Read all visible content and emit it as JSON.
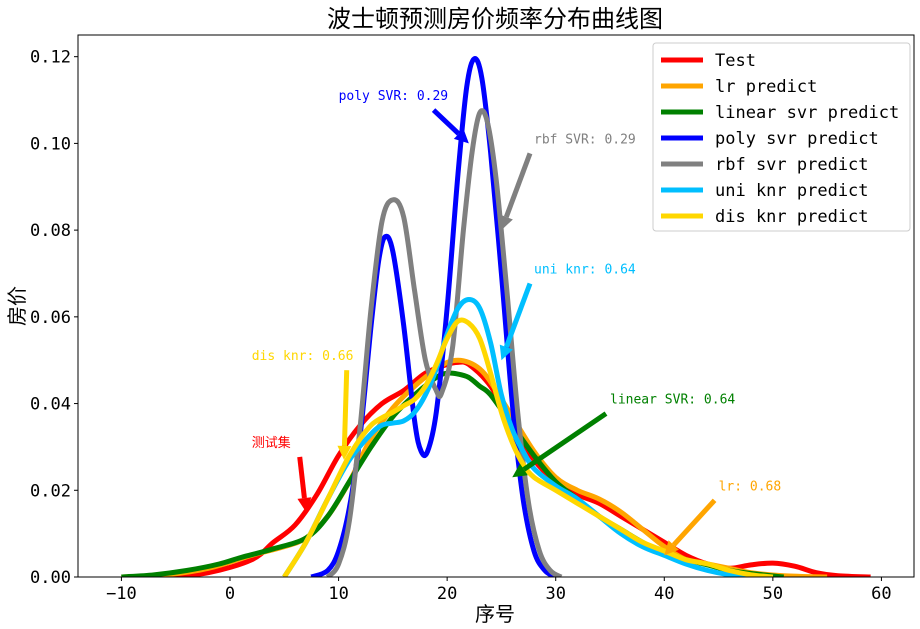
{
  "chart_data": {
    "type": "line",
    "title": "波士顿预测房价频率分布曲线图",
    "xlabel": "序号",
    "ylabel": "房价",
    "xlim": [
      -14,
      63
    ],
    "ylim": [
      0,
      0.125
    ],
    "xticks": [
      -10,
      0,
      10,
      20,
      30,
      40,
      50,
      60
    ],
    "yticks": [
      0.0,
      0.02,
      0.04,
      0.06,
      0.08,
      0.1,
      0.12
    ],
    "xtick_labels": [
      "−10",
      "0",
      "10",
      "20",
      "30",
      "40",
      "50",
      "60"
    ],
    "ytick_labels": [
      "0.00",
      "0.02",
      "0.04",
      "0.06",
      "0.08",
      "0.10",
      "0.12"
    ],
    "grid": false,
    "legend_position": "top-right",
    "series": [
      {
        "name": "Test",
        "color": "#ff0000",
        "points": [
          [
            -6,
            0
          ],
          [
            -2,
            0.001
          ],
          [
            2,
            0.004
          ],
          [
            4,
            0.008
          ],
          [
            6,
            0.012
          ],
          [
            8,
            0.019
          ],
          [
            10,
            0.028
          ],
          [
            12,
            0.035
          ],
          [
            14,
            0.04
          ],
          [
            16,
            0.043
          ],
          [
            18,
            0.047
          ],
          [
            20,
            0.049
          ],
          [
            21,
            0.0495
          ],
          [
            22,
            0.049
          ],
          [
            24,
            0.044
          ],
          [
            26,
            0.035
          ],
          [
            28,
            0.027
          ],
          [
            30,
            0.022
          ],
          [
            32,
            0.019
          ],
          [
            34,
            0.017
          ],
          [
            36,
            0.014
          ],
          [
            38,
            0.011
          ],
          [
            40,
            0.008
          ],
          [
            42,
            0.005
          ],
          [
            44,
            0.003
          ],
          [
            46,
            0.002
          ],
          [
            48,
            0.0028
          ],
          [
            50,
            0.0032
          ],
          [
            52,
            0.0025
          ],
          [
            54,
            0.001
          ],
          [
            56,
            0.0003
          ],
          [
            59,
            0
          ]
        ]
      },
      {
        "name": "lr predict",
        "color": "#ffa500",
        "points": [
          [
            -10,
            0
          ],
          [
            -6,
            0.0005
          ],
          [
            -2,
            0.002
          ],
          [
            2,
            0.005
          ],
          [
            5,
            0.007
          ],
          [
            7,
            0.009
          ],
          [
            9,
            0.014
          ],
          [
            11,
            0.022
          ],
          [
            13,
            0.032
          ],
          [
            15,
            0.039
          ],
          [
            17,
            0.044
          ],
          [
            19,
            0.048
          ],
          [
            20,
            0.0495
          ],
          [
            21,
            0.05
          ],
          [
            22,
            0.0495
          ],
          [
            23,
            0.048
          ],
          [
            24,
            0.045
          ],
          [
            26,
            0.037
          ],
          [
            28,
            0.029
          ],
          [
            30,
            0.023
          ],
          [
            32,
            0.02
          ],
          [
            34,
            0.018
          ],
          [
            36,
            0.015
          ],
          [
            38,
            0.011
          ],
          [
            40,
            0.007
          ],
          [
            42,
            0.004
          ],
          [
            44,
            0.003
          ],
          [
            46,
            0.002
          ],
          [
            48,
            0.001
          ],
          [
            51,
            0.0003
          ],
          [
            55,
            0
          ]
        ]
      },
      {
        "name": "linear svr predict",
        "color": "#008000",
        "points": [
          [
            -10,
            0
          ],
          [
            -7,
            0.0005
          ],
          [
            -4,
            0.0015
          ],
          [
            -1,
            0.003
          ],
          [
            1,
            0.0045
          ],
          [
            4,
            0.0065
          ],
          [
            7,
            0.009
          ],
          [
            9,
            0.014
          ],
          [
            11,
            0.022
          ],
          [
            13,
            0.03
          ],
          [
            15,
            0.037
          ],
          [
            17,
            0.042
          ],
          [
            19,
            0.046
          ],
          [
            20,
            0.047
          ],
          [
            21,
            0.0468
          ],
          [
            22,
            0.046
          ],
          [
            23,
            0.044
          ],
          [
            24,
            0.042
          ],
          [
            26,
            0.035
          ],
          [
            28,
            0.028
          ],
          [
            30,
            0.022
          ],
          [
            32,
            0.018
          ],
          [
            34,
            0.014
          ],
          [
            36,
            0.011
          ],
          [
            38,
            0.008
          ],
          [
            40,
            0.0055
          ],
          [
            42,
            0.004
          ],
          [
            44,
            0.0028
          ],
          [
            46,
            0.0015
          ],
          [
            48,
            0.0008
          ],
          [
            51,
            0
          ]
        ]
      },
      {
        "name": "poly svr predict",
        "color": "#0000ff",
        "points": [
          [
            7.5,
            0
          ],
          [
            9,
            0.0015
          ],
          [
            10,
            0.006
          ],
          [
            11,
            0.016
          ],
          [
            12,
            0.033
          ],
          [
            13,
            0.058
          ],
          [
            13.7,
            0.073
          ],
          [
            14.3,
            0.0785
          ],
          [
            15,
            0.075
          ],
          [
            16,
            0.058
          ],
          [
            17,
            0.036
          ],
          [
            17.6,
            0.029
          ],
          [
            18.2,
            0.029
          ],
          [
            19,
            0.038
          ],
          [
            20,
            0.062
          ],
          [
            21,
            0.093
          ],
          [
            21.8,
            0.113
          ],
          [
            22.5,
            0.1195
          ],
          [
            23.2,
            0.115
          ],
          [
            24,
            0.098
          ],
          [
            25,
            0.07
          ],
          [
            26,
            0.04
          ],
          [
            27,
            0.018
          ],
          [
            28,
            0.006
          ],
          [
            29,
            0.0015
          ],
          [
            30,
            0
          ]
        ]
      },
      {
        "name": "rbf svr predict",
        "color": "#808080",
        "points": [
          [
            9,
            0
          ],
          [
            10,
            0.003
          ],
          [
            11,
            0.013
          ],
          [
            12,
            0.035
          ],
          [
            13,
            0.062
          ],
          [
            14,
            0.082
          ],
          [
            15,
            0.087
          ],
          [
            16,
            0.083
          ],
          [
            17,
            0.066
          ],
          [
            18,
            0.05
          ],
          [
            19,
            0.043
          ],
          [
            19.5,
            0.0425
          ],
          [
            20.5,
            0.053
          ],
          [
            21.5,
            0.08
          ],
          [
            22.3,
            0.098
          ],
          [
            23,
            0.107
          ],
          [
            23.7,
            0.105
          ],
          [
            24.5,
            0.092
          ],
          [
            25.5,
            0.066
          ],
          [
            26.5,
            0.038
          ],
          [
            27.5,
            0.017
          ],
          [
            28.5,
            0.006
          ],
          [
            29.5,
            0.0015
          ],
          [
            30.5,
            0
          ]
        ]
      },
      {
        "name": "uni knr predict",
        "color": "#00bfff",
        "points": [
          [
            5,
            0
          ],
          [
            7,
            0.008
          ],
          [
            9,
            0.018
          ],
          [
            11,
            0.027
          ],
          [
            13,
            0.033
          ],
          [
            14,
            0.035
          ],
          [
            15,
            0.0355
          ],
          [
            16,
            0.036
          ],
          [
            17,
            0.038
          ],
          [
            18,
            0.042
          ],
          [
            19,
            0.048
          ],
          [
            20,
            0.056
          ],
          [
            21,
            0.062
          ],
          [
            22,
            0.064
          ],
          [
            23,
            0.062
          ],
          [
            24,
            0.054
          ],
          [
            25,
            0.042
          ],
          [
            26,
            0.034
          ],
          [
            27,
            0.029
          ],
          [
            28,
            0.025
          ],
          [
            30,
            0.021
          ],
          [
            32,
            0.018
          ],
          [
            34,
            0.014
          ],
          [
            36,
            0.01
          ],
          [
            38,
            0.007
          ],
          [
            40,
            0.005
          ],
          [
            42,
            0.003
          ],
          [
            44,
            0.0015
          ],
          [
            46,
            0.0005
          ],
          [
            48,
            0
          ]
        ]
      },
      {
        "name": "dis knr predict",
        "color": "#ffd700",
        "points": [
          [
            5,
            0
          ],
          [
            7,
            0.008
          ],
          [
            9,
            0.018
          ],
          [
            11,
            0.028
          ],
          [
            13,
            0.035
          ],
          [
            15,
            0.038
          ],
          [
            16,
            0.0395
          ],
          [
            17,
            0.041
          ],
          [
            18,
            0.044
          ],
          [
            19,
            0.049
          ],
          [
            20,
            0.055
          ],
          [
            21,
            0.059
          ],
          [
            22,
            0.0585
          ],
          [
            23,
            0.055
          ],
          [
            24,
            0.047
          ],
          [
            25,
            0.038
          ],
          [
            26,
            0.031
          ],
          [
            27,
            0.026
          ],
          [
            28,
            0.023
          ],
          [
            30,
            0.02
          ],
          [
            32,
            0.017
          ],
          [
            34,
            0.014
          ],
          [
            36,
            0.011
          ],
          [
            38,
            0.008
          ],
          [
            40,
            0.006
          ],
          [
            42,
            0.004
          ],
          [
            44,
            0.003
          ],
          [
            46,
            0.0015
          ],
          [
            48,
            0.0005
          ],
          [
            50,
            0
          ]
        ]
      }
    ],
    "annotations": [
      {
        "text": "测试集",
        "color": "#ff0000",
        "xy": [
          7,
          0.015
        ],
        "xytext": [
          2,
          0.03
        ]
      },
      {
        "text": "lr: 0.68",
        "color": "#ffa500",
        "xy": [
          40,
          0.005
        ],
        "xytext": [
          45,
          0.02
        ]
      },
      {
        "text": "linear SVR: 0.64",
        "color": "#008000",
        "xy": [
          26,
          0.023
        ],
        "xytext": [
          35,
          0.04
        ]
      },
      {
        "text": "poly SVR: 0.29",
        "color": "#0000ff",
        "xy": [
          22,
          0.1
        ],
        "xytext": [
          10,
          0.11
        ]
      },
      {
        "text": "rbf SVR: 0.29",
        "color": "#808080",
        "xy": [
          25,
          0.08
        ],
        "xytext": [
          28,
          0.1
        ]
      },
      {
        "text": "uni knr: 0.64",
        "color": "#00bfff",
        "xy": [
          25,
          0.05
        ],
        "xytext": [
          28,
          0.07
        ]
      },
      {
        "text": "dis knr: 0.66",
        "color": "#ffd700",
        "xy": [
          10.5,
          0.027
        ],
        "xytext": [
          2,
          0.05
        ]
      }
    ]
  }
}
